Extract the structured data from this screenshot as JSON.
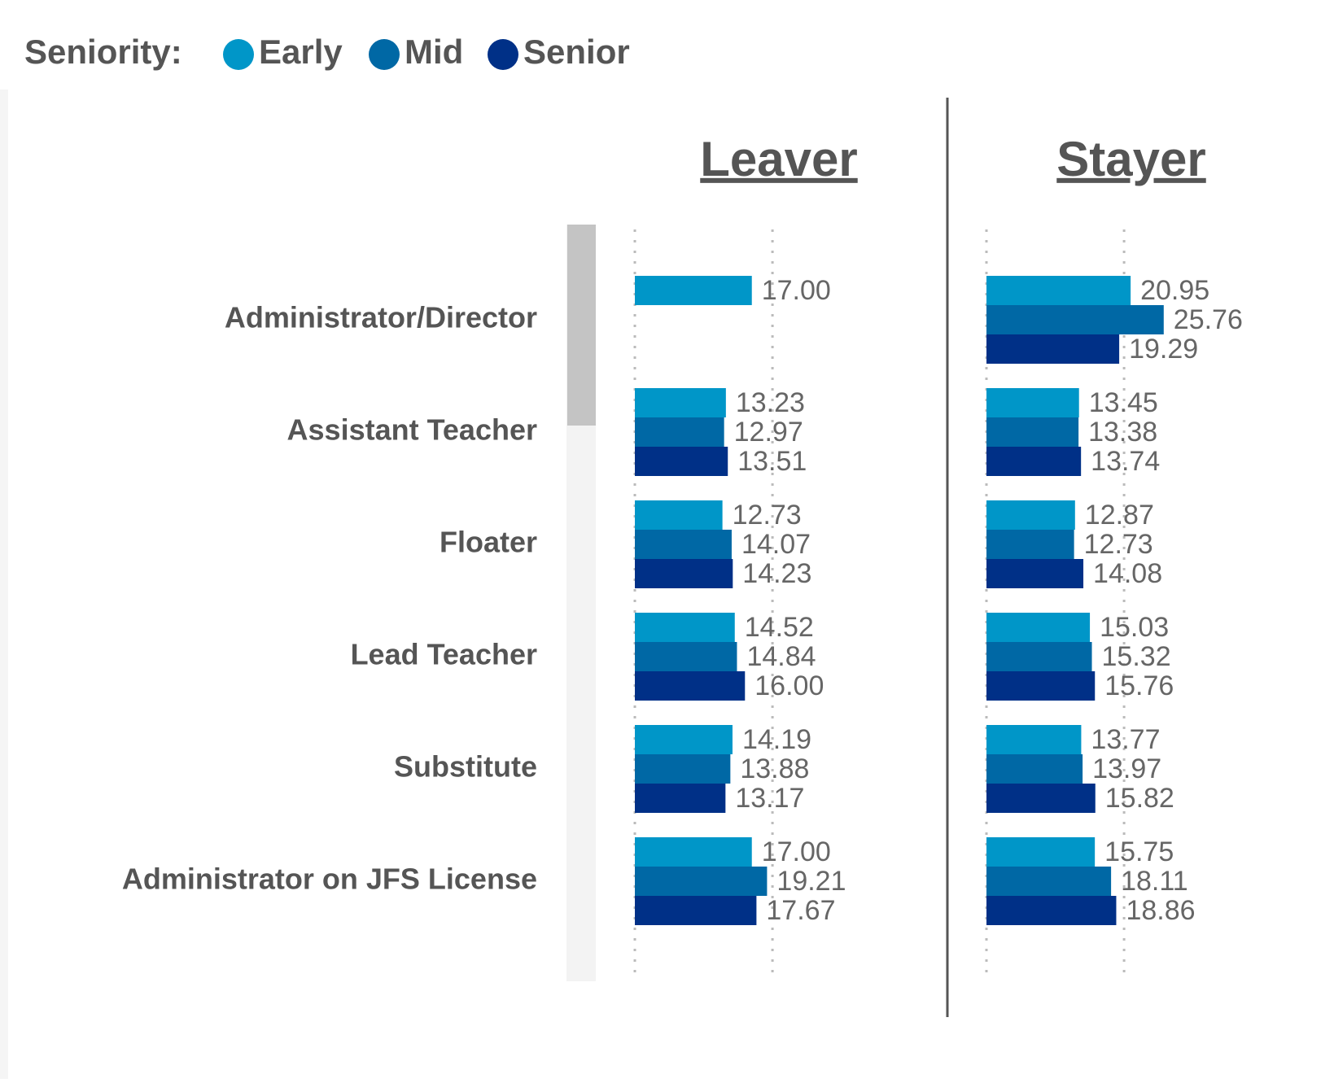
{
  "chart_data": {
    "type": "bar",
    "legend_title": "Seniority:",
    "panels": [
      "Leaver",
      "Stayer"
    ],
    "categories": [
      "Administrator/Director",
      "Assistant Teacher",
      "Floater",
      "Lead Teacher",
      "Substitute",
      "Administrator on JFS License"
    ],
    "series": [
      {
        "name": "Early",
        "color": "#0096c8",
        "values": [
          [
            17,
            13.23,
            12.73,
            14.52,
            14.19,
            17
          ],
          [
            20.95,
            13.45,
            12.87,
            15.03,
            13.77,
            15.75
          ]
        ],
        "value_labels": [
          [
            "17.00",
            "13.23",
            "12.73",
            "14.52",
            "14.19",
            "17.00"
          ],
          [
            "20.95",
            "13.45",
            "12.87",
            "15.03",
            "13.77",
            "15.75"
          ]
        ]
      },
      {
        "name": "Mid",
        "color": "#0068a5",
        "values": [
          [
            null,
            12.97,
            14.07,
            14.84,
            13.88,
            19.21
          ],
          [
            25.76,
            13.38,
            12.73,
            15.32,
            13.97,
            18.11
          ]
        ],
        "value_labels": [
          [
            null,
            "12.97",
            "14.07",
            "14.84",
            "13.88",
            "19.21"
          ],
          [
            "25.76",
            "13.38",
            "12.73",
            "15.32",
            "13.97",
            "18.11"
          ]
        ]
      },
      {
        "name": "Senior",
        "color": "#003087",
        "values": [
          [
            null,
            13.51,
            14.23,
            16,
            13.17,
            17.67
          ],
          [
            19.29,
            13.74,
            14.08,
            15.76,
            15.82,
            18.86
          ]
        ],
        "value_labels": [
          [
            null,
            "13.51",
            "14.23",
            "16.00",
            "13.17",
            "17.67"
          ],
          [
            "19.29",
            "13.74",
            "14.08",
            "15.76",
            "15.82",
            "18.86"
          ]
        ]
      }
    ],
    "xlim": [
      0,
      44
    ],
    "xticks": [
      0,
      20
    ],
    "grid": true
  }
}
